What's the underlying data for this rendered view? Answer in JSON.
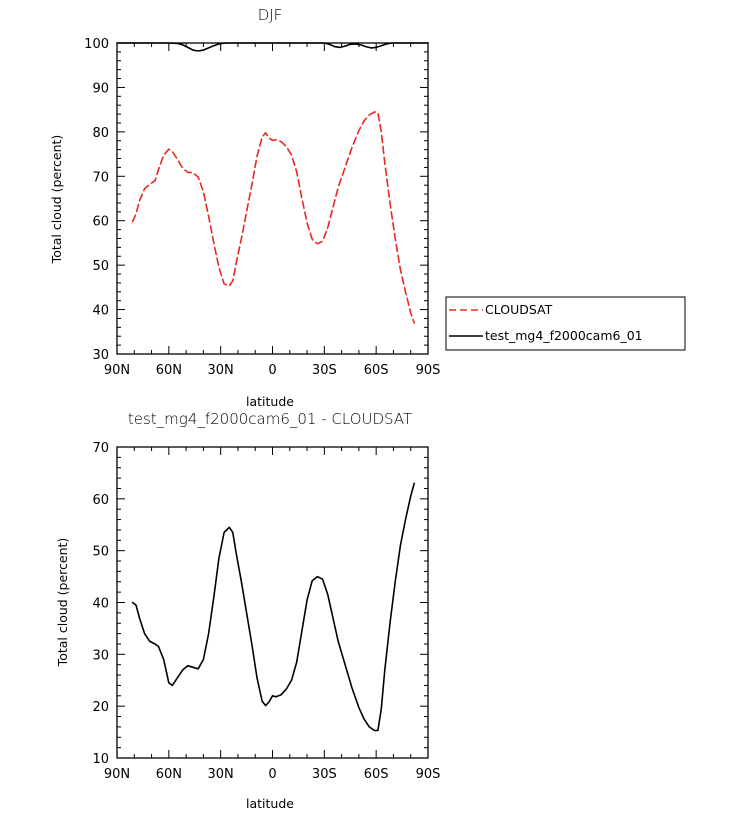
{
  "chart_data": [
    {
      "type": "line",
      "title": "DJF",
      "xlabel": "latitude",
      "ylabel": "Total cloud (percent)",
      "xlim": [
        -90,
        90
      ],
      "ylim": [
        30,
        100
      ],
      "x_ticks": [
        {
          "value": -90,
          "label": "90N"
        },
        {
          "value": -60,
          "label": "60N"
        },
        {
          "value": -30,
          "label": "30N"
        },
        {
          "value": 0,
          "label": "0"
        },
        {
          "value": 30,
          "label": "30S"
        },
        {
          "value": 60,
          "label": "60S"
        },
        {
          "value": 90,
          "label": "90S"
        }
      ],
      "y_ticks": [
        30,
        40,
        50,
        60,
        70,
        80,
        90,
        100
      ],
      "legend": {
        "placement": "right-outside"
      },
      "series": [
        {
          "name": "CLOUDSAT",
          "color": "#e8281e",
          "dash": true,
          "x": [
            -81,
            -79,
            -77,
            -74,
            -71,
            -68,
            -66,
            -63,
            -60,
            -58,
            -55,
            -52,
            -49,
            -46,
            -43,
            -40,
            -37,
            -34,
            -31,
            -28,
            -25,
            -23,
            -21,
            -18,
            -15,
            -12,
            -9,
            -6,
            -4,
            -2,
            0,
            2,
            5,
            8,
            11,
            14,
            17,
            20,
            23,
            26,
            29,
            32,
            35,
            38,
            42,
            46,
            50,
            53,
            56,
            59,
            61,
            63,
            65,
            68,
            71,
            74,
            77,
            80,
            82
          ],
          "y": [
            59.8,
            61.5,
            64.5,
            67.2,
            68.2,
            69,
            71.5,
            74.8,
            76.1,
            75.6,
            73.8,
            71.8,
            70.9,
            70.8,
            69.8,
            66.5,
            61,
            55,
            49.5,
            45.8,
            45.3,
            46.5,
            50.5,
            56,
            62,
            68,
            74.5,
            78.8,
            79.8,
            78.6,
            78.1,
            78.2,
            77.8,
            76.7,
            74.8,
            71,
            65,
            59.5,
            55.8,
            54.8,
            55.4,
            58.5,
            63,
            67.5,
            72,
            76.5,
            80.3,
            82.5,
            83.8,
            84.5,
            84.3,
            80,
            73,
            64,
            56,
            49,
            44,
            39.3,
            37
          ]
        },
        {
          "name": "test_mg4_f2000cam6_01",
          "color": "#000000",
          "dash": false,
          "x": [
            -90,
            -60,
            -55,
            -52,
            -49,
            -46,
            -43,
            -40,
            -37,
            -34,
            -31,
            -28,
            -25,
            -20,
            0,
            20,
            30,
            33,
            36,
            39,
            42,
            45,
            48,
            51,
            54,
            57,
            60,
            63,
            66,
            69,
            72,
            75,
            90
          ],
          "y": [
            100,
            100,
            99.9,
            99.6,
            99,
            98.4,
            98.2,
            98.4,
            98.9,
            99.4,
            99.8,
            99.95,
            100,
            100,
            100,
            100,
            100,
            99.7,
            99.2,
            99,
            99.3,
            99.7,
            99.8,
            99.6,
            99.2,
            98.9,
            99,
            99.4,
            99.8,
            100,
            100,
            100,
            100
          ]
        }
      ]
    },
    {
      "type": "line",
      "title": "test_mg4_f2000cam6_01 - CLOUDSAT",
      "xlabel": "latitude",
      "ylabel": "Total cloud (percent)",
      "xlim": [
        -90,
        90
      ],
      "ylim": [
        10,
        70
      ],
      "x_ticks": [
        {
          "value": -90,
          "label": "90N"
        },
        {
          "value": -60,
          "label": "60N"
        },
        {
          "value": -30,
          "label": "30N"
        },
        {
          "value": 0,
          "label": "0"
        },
        {
          "value": 30,
          "label": "30S"
        },
        {
          "value": 60,
          "label": "60S"
        },
        {
          "value": 90,
          "label": "90S"
        }
      ],
      "y_ticks": [
        10,
        20,
        30,
        40,
        50,
        60,
        70
      ],
      "series": [
        {
          "color": "#000000",
          "dash": false,
          "x": [
            -81,
            -79,
            -77,
            -74,
            -71,
            -68,
            -66,
            -63,
            -60,
            -58,
            -55,
            -52,
            -49,
            -46,
            -43,
            -40,
            -37,
            -34,
            -31,
            -28,
            -25,
            -23,
            -21,
            -18,
            -15,
            -12,
            -9,
            -6,
            -4,
            -2,
            0,
            2,
            5,
            8,
            11,
            14,
            17,
            20,
            23,
            26,
            29,
            32,
            35,
            38,
            42,
            46,
            50,
            53,
            56,
            59,
            61,
            63,
            65,
            68,
            71,
            74,
            77,
            80,
            82
          ],
          "y": [
            40,
            39.5,
            37,
            34,
            32.5,
            32,
            31.5,
            29,
            24.5,
            24,
            25.5,
            27,
            27.8,
            27.5,
            27.2,
            29,
            34,
            41,
            48.5,
            53.5,
            54.5,
            53.5,
            49.5,
            44,
            38,
            32,
            25.5,
            21,
            20.1,
            20.8,
            22,
            21.8,
            22.2,
            23.3,
            25,
            28.5,
            34.5,
            40.5,
            44.2,
            45,
            44.5,
            41.5,
            37,
            32.5,
            28,
            23.5,
            19.7,
            17.5,
            16,
            15.3,
            15.3,
            19.5,
            27,
            36,
            44,
            51,
            56,
            60.5,
            63
          ]
        }
      ]
    }
  ]
}
